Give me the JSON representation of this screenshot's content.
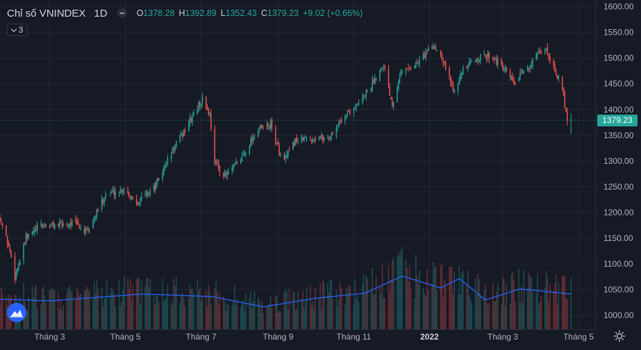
{
  "header": {
    "title": "Chỉ số VNINDEX",
    "interval": "1D",
    "ohlc": {
      "o_label": "O",
      "o_value": "1378.28",
      "h_label": "H",
      "h_value": "1392.89",
      "l_label": "L",
      "l_value": "1352.43",
      "c_label": "C",
      "c_value": "1379.23",
      "change": "+9.02 (+0.66%)"
    }
  },
  "studies_count": "3",
  "last_price_label": "1379.23",
  "colors": {
    "background": "#161a25",
    "up": "#26a69a",
    "down": "#ef5350",
    "volume_ma": "#2962ff",
    "grid": "#242733",
    "axis_text": "#b2b5be",
    "logo": "#2962ff"
  },
  "icons": {
    "logo": "tradingview-cloud-icon",
    "settings": "gear-icon",
    "studies_toggle": "chevron-down-icon"
  },
  "chart_data": {
    "type": "candlestick",
    "symbol": "Chỉ số VNINDEX",
    "interval": "1D",
    "y_axis": {
      "ticks": [
        "1600.00",
        "1550.00",
        "1500.00",
        "1450.00",
        "1400.00",
        "1350.00",
        "1300.00",
        "1250.00",
        "1200.00",
        "1150.00",
        "1100.00",
        "1050.00",
        "1000.00"
      ],
      "range": [
        973,
        1613
      ]
    },
    "x_axis": {
      "ticks": [
        "Tháng 3",
        "Tháng 5",
        "Tháng 7",
        "Tháng 9",
        "Tháng 11",
        "2022",
        "Tháng 3",
        "Tháng 5"
      ],
      "range": [
        "2021-01-20",
        "2022-05-15"
      ]
    },
    "price_path_approx": [
      [
        "2021-01-20",
        1190
      ],
      [
        "2021-01-28",
        1125
      ],
      [
        "2021-02-01",
        1075
      ],
      [
        "2021-02-10",
        1150
      ],
      [
        "2021-02-22",
        1175
      ],
      [
        "2021-03-05",
        1175
      ],
      [
        "2021-03-20",
        1180
      ],
      [
        "2021-03-31",
        1160
      ],
      [
        "2021-04-15",
        1235
      ],
      [
        "2021-04-30",
        1245
      ],
      [
        "2021-05-10",
        1220
      ],
      [
        "2021-05-25",
        1250
      ],
      [
        "2021-06-08",
        1320
      ],
      [
        "2021-06-20",
        1370
      ],
      [
        "2021-07-02",
        1420
      ],
      [
        "2021-07-08",
        1390
      ],
      [
        "2021-07-12",
        1300
      ],
      [
        "2021-07-20",
        1270
      ],
      [
        "2021-08-01",
        1300
      ],
      [
        "2021-08-15",
        1360
      ],
      [
        "2021-08-26",
        1370
      ],
      [
        "2021-09-05",
        1295
      ],
      [
        "2021-09-15",
        1340
      ],
      [
        "2021-09-30",
        1345
      ],
      [
        "2021-10-12",
        1345
      ],
      [
        "2021-10-25",
        1390
      ],
      [
        "2021-11-05",
        1410
      ],
      [
        "2021-11-18",
        1460
      ],
      [
        "2021-11-25",
        1490
      ],
      [
        "2021-12-02",
        1410
      ],
      [
        "2021-12-08",
        1470
      ],
      [
        "2021-12-22",
        1490
      ],
      [
        "2022-01-04",
        1525
      ],
      [
        "2022-01-10",
        1510
      ],
      [
        "2022-01-20",
        1440
      ],
      [
        "2022-01-28",
        1475
      ],
      [
        "2022-02-08",
        1500
      ],
      [
        "2022-02-20",
        1505
      ],
      [
        "2022-03-01",
        1480
      ],
      [
        "2022-03-10",
        1450
      ],
      [
        "2022-03-20",
        1480
      ],
      [
        "2022-04-04",
        1520
      ],
      [
        "2022-04-10",
        1490
      ],
      [
        "2022-04-18",
        1440
      ],
      [
        "2022-04-22",
        1380
      ],
      [
        "2022-04-25",
        1379.23
      ]
    ],
    "volume_ma_path_approx": [
      [
        "2021-01-20",
        0.35
      ],
      [
        "2021-03-01",
        0.33
      ],
      [
        "2021-05-15",
        0.41
      ],
      [
        "2021-07-10",
        0.38
      ],
      [
        "2021-08-20",
        0.26
      ],
      [
        "2021-10-01",
        0.36
      ],
      [
        "2021-11-10",
        0.42
      ],
      [
        "2021-12-10",
        0.62
      ],
      [
        "2022-01-10",
        0.48
      ],
      [
        "2022-01-25",
        0.59
      ],
      [
        "2022-02-15",
        0.34
      ],
      [
        "2022-03-15",
        0.47
      ],
      [
        "2022-04-25",
        0.41
      ]
    ],
    "last": {
      "date": "2022-04-25",
      "open": 1378.28,
      "high": 1392.89,
      "low": 1352.43,
      "close": 1379.23
    },
    "series": [
      {
        "name": "Chỉ số VNINDEX",
        "kind": "candles"
      }
    ],
    "grid": true,
    "price_line": 1379.23
  }
}
